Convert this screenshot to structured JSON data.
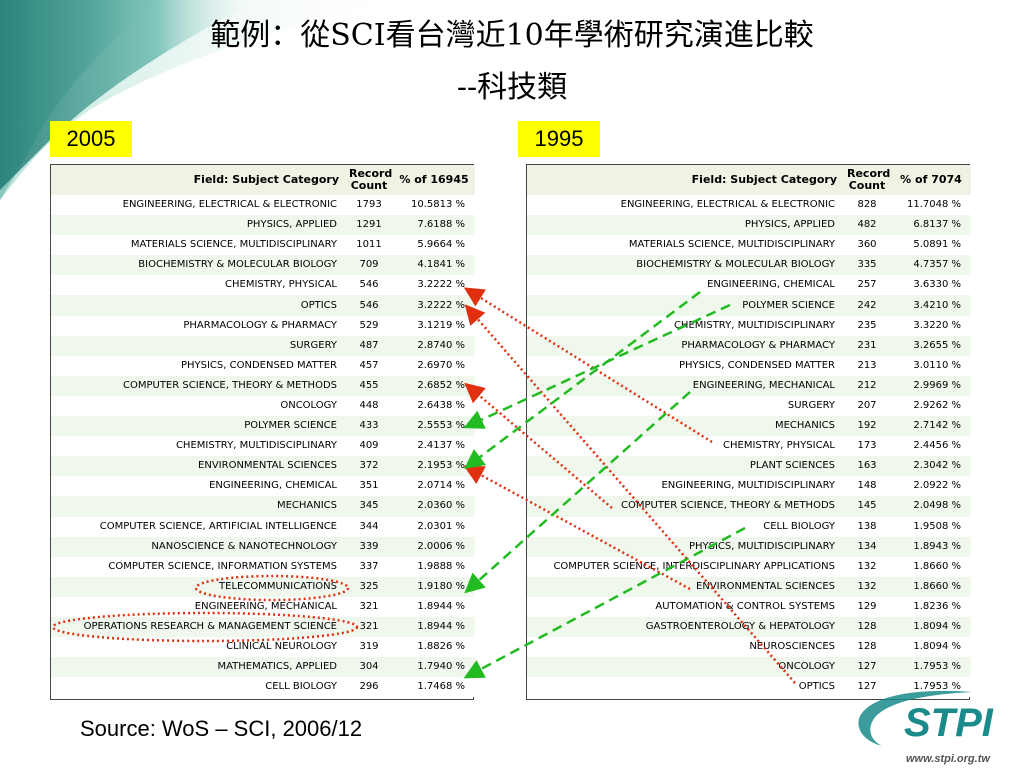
{
  "slide": {
    "title_line1": "範例：從SCI看台灣近10年學術研究演進比較",
    "title_line2": "--科技類",
    "source": "Source: WoS – SCI, 2006/12",
    "colors": {
      "badge": "#ffff00",
      "header_bg": "#f1f1e4",
      "row_alt": "#f0f7ec",
      "red_arrow": "#e03010",
      "green_arrow": "#22bb22",
      "logo": "#1a8a8a"
    }
  },
  "logo": {
    "text": "STPI",
    "url_text": "www.stpi.org.tw"
  },
  "left_table": {
    "year": "2005",
    "header": {
      "field": "Field: Subject Category",
      "count": "Record Count",
      "pct": "% of 16945"
    },
    "rows": [
      {
        "cat": "ENGINEERING, ELECTRICAL & ELECTRONIC",
        "count": "1793",
        "pct": "10.5813 %"
      },
      {
        "cat": "PHYSICS, APPLIED",
        "count": "1291",
        "pct": "7.6188 %"
      },
      {
        "cat": "MATERIALS SCIENCE, MULTIDISCIPLINARY",
        "count": "1011",
        "pct": "5.9664 %"
      },
      {
        "cat": "BIOCHEMISTRY & MOLECULAR BIOLOGY",
        "count": "709",
        "pct": "4.1841 %"
      },
      {
        "cat": "CHEMISTRY, PHYSICAL",
        "count": "546",
        "pct": "3.2222 %"
      },
      {
        "cat": "OPTICS",
        "count": "546",
        "pct": "3.2222 %"
      },
      {
        "cat": "PHARMACOLOGY & PHARMACY",
        "count": "529",
        "pct": "3.1219 %"
      },
      {
        "cat": "SURGERY",
        "count": "487",
        "pct": "2.8740 %"
      },
      {
        "cat": "PHYSICS, CONDENSED MATTER",
        "count": "457",
        "pct": "2.6970 %"
      },
      {
        "cat": "COMPUTER SCIENCE, THEORY & METHODS",
        "count": "455",
        "pct": "2.6852 %"
      },
      {
        "cat": "ONCOLOGY",
        "count": "448",
        "pct": "2.6438 %"
      },
      {
        "cat": "POLYMER SCIENCE",
        "count": "433",
        "pct": "2.5553 %"
      },
      {
        "cat": "CHEMISTRY, MULTIDISCIPLINARY",
        "count": "409",
        "pct": "2.4137 %"
      },
      {
        "cat": "ENVIRONMENTAL SCIENCES",
        "count": "372",
        "pct": "2.1953 %"
      },
      {
        "cat": "ENGINEERING, CHEMICAL",
        "count": "351",
        "pct": "2.0714 %"
      },
      {
        "cat": "MECHANICS",
        "count": "345",
        "pct": "2.0360 %"
      },
      {
        "cat": "COMPUTER SCIENCE, ARTIFICIAL INTELLIGENCE",
        "count": "344",
        "pct": "2.0301 %"
      },
      {
        "cat": "NANOSCIENCE & NANOTECHNOLOGY",
        "count": "339",
        "pct": "2.0006 %"
      },
      {
        "cat": "COMPUTER SCIENCE, INFORMATION SYSTEMS",
        "count": "337",
        "pct": "1.9888 %"
      },
      {
        "cat": "TELECOMMUNICATIONS",
        "count": "325",
        "pct": "1.9180 %"
      },
      {
        "cat": "ENGINEERING, MECHANICAL",
        "count": "321",
        "pct": "1.8944 %"
      },
      {
        "cat": "OPERATIONS RESEARCH & MANAGEMENT SCIENCE",
        "count": "321",
        "pct": "1.8944 %"
      },
      {
        "cat": "CLINICAL NEUROLOGY",
        "count": "319",
        "pct": "1.8826 %"
      },
      {
        "cat": "MATHEMATICS, APPLIED",
        "count": "304",
        "pct": "1.7940 %"
      },
      {
        "cat": "CELL BIOLOGY",
        "count": "296",
        "pct": "1.7468 %"
      }
    ]
  },
  "right_table": {
    "year": "1995",
    "header": {
      "field": "Field: Subject Category",
      "count": "Record Count",
      "pct": "% of 7074"
    },
    "rows": [
      {
        "cat": "ENGINEERING, ELECTRICAL & ELECTRONIC",
        "count": "828",
        "pct": "11.7048 %"
      },
      {
        "cat": "PHYSICS, APPLIED",
        "count": "482",
        "pct": "6.8137 %"
      },
      {
        "cat": "MATERIALS SCIENCE, MULTIDISCIPLINARY",
        "count": "360",
        "pct": "5.0891 %"
      },
      {
        "cat": "BIOCHEMISTRY & MOLECULAR BIOLOGY",
        "count": "335",
        "pct": "4.7357 %"
      },
      {
        "cat": "ENGINEERING, CHEMICAL",
        "count": "257",
        "pct": "3.6330 %"
      },
      {
        "cat": "POLYMER SCIENCE",
        "count": "242",
        "pct": "3.4210 %"
      },
      {
        "cat": "CHEMISTRY, MULTIDISCIPLINARY",
        "count": "235",
        "pct": "3.3220 %"
      },
      {
        "cat": "PHARMACOLOGY & PHARMACY",
        "count": "231",
        "pct": "3.2655 %"
      },
      {
        "cat": "PHYSICS, CONDENSED MATTER",
        "count": "213",
        "pct": "3.0110 %"
      },
      {
        "cat": "ENGINEERING, MECHANICAL",
        "count": "212",
        "pct": "2.9969 %"
      },
      {
        "cat": "SURGERY",
        "count": "207",
        "pct": "2.9262 %"
      },
      {
        "cat": "MECHANICS",
        "count": "192",
        "pct": "2.7142 %"
      },
      {
        "cat": "CHEMISTRY, PHYSICAL",
        "count": "173",
        "pct": "2.4456 %"
      },
      {
        "cat": "PLANT SCIENCES",
        "count": "163",
        "pct": "2.3042 %"
      },
      {
        "cat": "ENGINEERING, MULTIDISCIPLINARY",
        "count": "148",
        "pct": "2.0922 %"
      },
      {
        "cat": "COMPUTER SCIENCE, THEORY & METHODS",
        "count": "145",
        "pct": "2.0498 %"
      },
      {
        "cat": "CELL BIOLOGY",
        "count": "138",
        "pct": "1.9508 %"
      },
      {
        "cat": "PHYSICS, MULTIDISCIPLINARY",
        "count": "134",
        "pct": "1.8943 %"
      },
      {
        "cat": "COMPUTER SCIENCE, INTERDISCIPLINARY APPLICATIONS",
        "count": "132",
        "pct": "1.8660 %"
      },
      {
        "cat": "ENVIRONMENTAL SCIENCES",
        "count": "132",
        "pct": "1.8660 %"
      },
      {
        "cat": "AUTOMATION & CONTROL SYSTEMS",
        "count": "129",
        "pct": "1.8236 %"
      },
      {
        "cat": "GASTROENTEROLOGY & HEPATOLOGY",
        "count": "128",
        "pct": "1.8094 %"
      },
      {
        "cat": "NEUROSCIENCES",
        "count": "128",
        "pct": "1.8094 %"
      },
      {
        "cat": "ONCOLOGY",
        "count": "127",
        "pct": "1.7953 %"
      },
      {
        "cat": "OPTICS",
        "count": "127",
        "pct": "1.7953 %"
      }
    ]
  }
}
